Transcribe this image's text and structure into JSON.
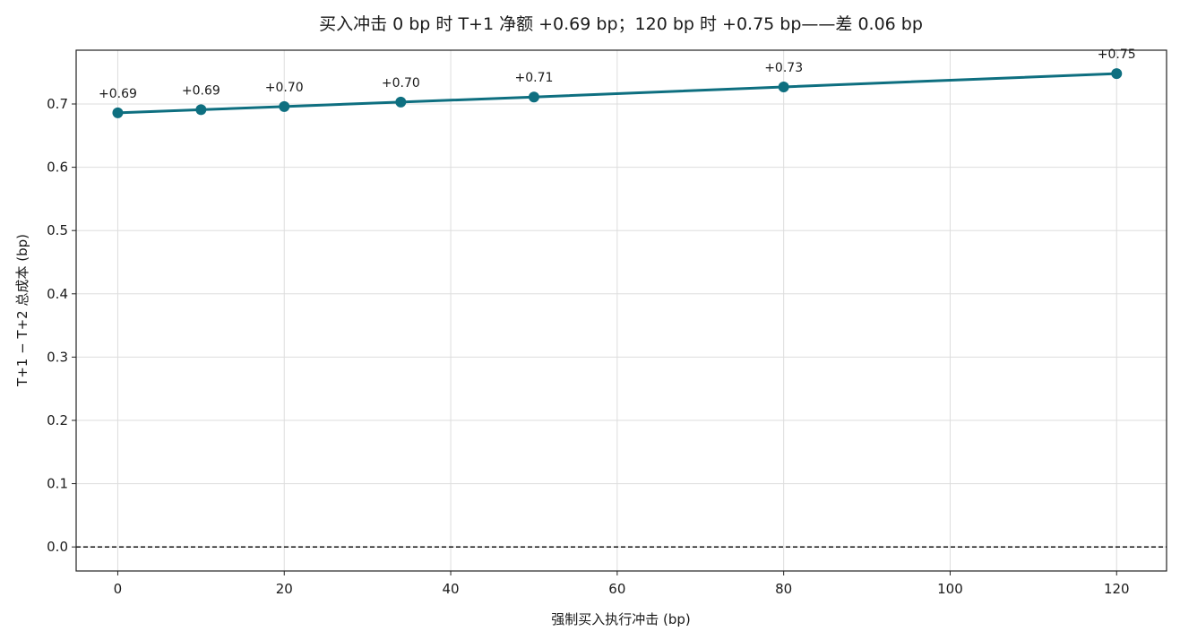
{
  "chart_data": {
    "type": "line",
    "title": "买入冲击 0 bp 时 T+1 净额 +0.69 bp；120 bp 时 +0.75 bp——差 0.06 bp",
    "xlabel": "强制买入执行冲击 (bp)",
    "ylabel": "T+1 − T+2 总成本 (bp)",
    "xlim": [
      -5,
      126
    ],
    "ylim": [
      -0.038,
      0.785
    ],
    "x_ticks": [
      0,
      20,
      40,
      60,
      80,
      100,
      120
    ],
    "y_ticks": [
      0.0,
      0.1,
      0.2,
      0.3,
      0.4,
      0.5,
      0.6,
      0.7
    ],
    "x_tick_labels": [
      "0",
      "20",
      "40",
      "60",
      "80",
      "100",
      "120"
    ],
    "y_tick_labels": [
      "0.0",
      "0.1",
      "0.2",
      "0.3",
      "0.4",
      "0.5",
      "0.6",
      "0.7"
    ],
    "grid": true,
    "series": [
      {
        "color": "#0e6f80",
        "x": [
          0,
          10,
          20,
          34,
          50,
          80,
          120
        ],
        "y": [
          0.686,
          0.691,
          0.696,
          0.703,
          0.711,
          0.727,
          0.748
        ],
        "labels": [
          "+0.69",
          "+0.69",
          "+0.70",
          "+0.70",
          "+0.71",
          "+0.73",
          "+0.75"
        ]
      }
    ],
    "reference_line": {
      "y": 0.0,
      "style": "dashed",
      "color": "#000000"
    }
  }
}
